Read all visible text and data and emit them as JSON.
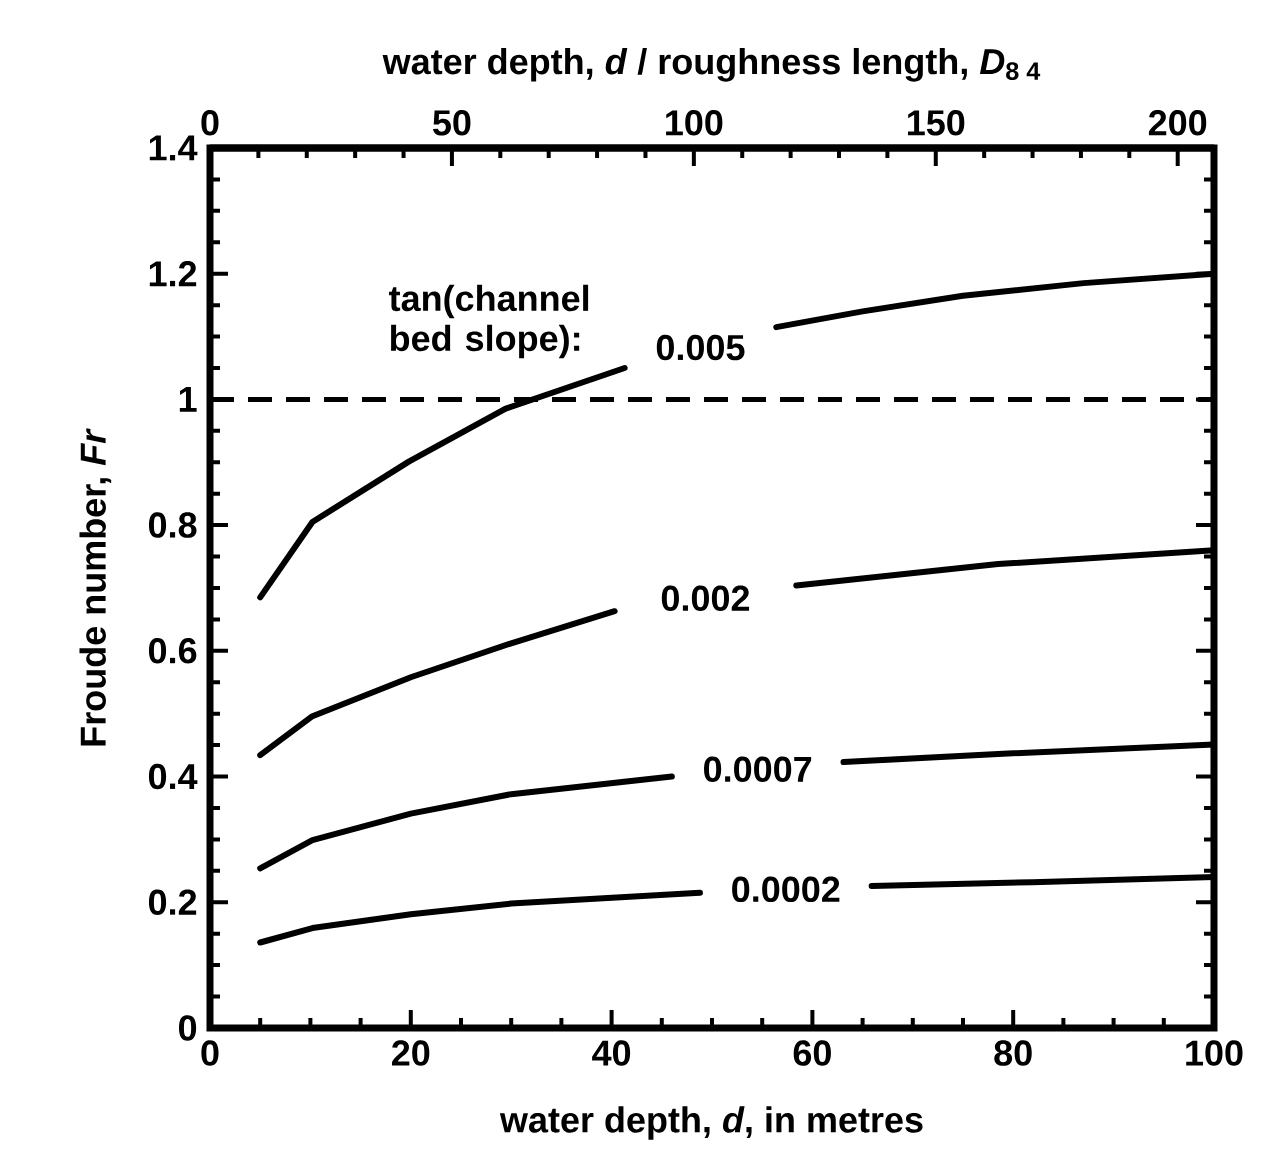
{
  "chart_data": {
    "type": "line",
    "xlabel": "water depth, *d*, in metres",
    "ylabel": "Froude number, *Fr*",
    "x2label": "water depth, *d* / roughness length, *D*$_{8 4}$",
    "xlim": [
      0,
      100
    ],
    "xticks": [
      0,
      20,
      40,
      60,
      80,
      100
    ],
    "ylim": [
      0,
      1.4
    ],
    "yticks": [
      0,
      0.2,
      0.4,
      0.6,
      0.8,
      1,
      1.2,
      1.4
    ],
    "x2lim": [
      0,
      207.5
    ],
    "x2ticks": [
      0,
      50,
      100,
      150,
      200
    ],
    "line_style": "solid",
    "series": [
      {
        "name": "0.005",
        "color": "#000000",
        "x": [
          5,
          10.2,
          19.8,
          29.4,
          41.3,
          null,
          56.4,
          65,
          75,
          87,
          100
        ],
        "values": [
          0.685,
          0.805,
          0.901,
          0.985,
          1.05,
          null,
          1.115,
          1.14,
          1.165,
          1.185,
          1.2
        ]
      },
      {
        "name": "0.002",
        "color": "#000000",
        "x": [
          5,
          10.2,
          20,
          30,
          40.3,
          null,
          58.4,
          78.5,
          100
        ],
        "values": [
          0.434,
          0.496,
          0.558,
          0.612,
          0.663,
          null,
          0.704,
          0.738,
          0.76
        ]
      },
      {
        "name": "0.0007",
        "color": "#000000",
        "x": [
          5,
          10.2,
          20,
          30,
          46,
          null,
          63.1,
          78.5,
          100
        ],
        "values": [
          0.254,
          0.299,
          0.341,
          0.372,
          0.4,
          null,
          0.423,
          0.436,
          0.451
        ]
      },
      {
        "name": "0.0002",
        "color": "#000000",
        "x": [
          5,
          10.2,
          20,
          30,
          48.8,
          null,
          65.9,
          81.9,
          100
        ],
        "values": [
          0.136,
          0.159,
          0.181,
          0.198,
          0.215,
          null,
          0.226,
          0.232,
          0.24
        ]
      }
    ],
    "ref_lines": [
      {
        "axis": "y",
        "value": 1,
        "color": "#000000",
        "line_style": "dashed"
      }
    ],
    "annotations": [
      "tan(channel bed slope):"
    ]
  }
}
